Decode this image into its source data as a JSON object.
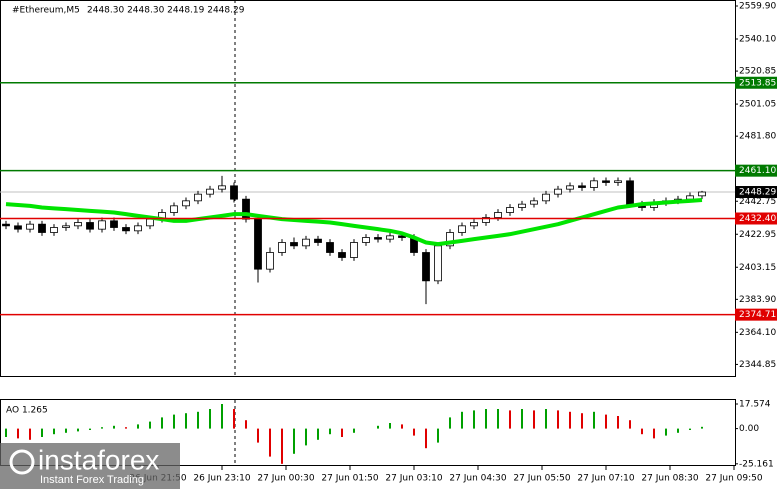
{
  "chart_data": {
    "type": "candlestick",
    "title": "#Ethereum,M5",
    "subtitle": "2448.30 2448.30 2448.19 2448.29",
    "up_color": "#ffffff",
    "down_color": "#000000",
    "outline_color": "#000000",
    "open": [
      2429,
      2428,
      2426,
      2429,
      2424,
      2427,
      2428,
      2430,
      2426,
      2431,
      2427,
      2425,
      2428,
      2432,
      2436,
      2440,
      2443,
      2447,
      2450,
      2452,
      2444,
      2432,
      2402,
      2412,
      2418,
      2416,
      2420,
      2418,
      2412,
      2409,
      2418,
      2421,
      2420,
      2422,
      2421,
      2412,
      2395,
      2416,
      2424,
      2428,
      2430,
      2433,
      2436,
      2439,
      2441,
      2443,
      2447,
      2450,
      2452,
      2451,
      2455,
      2454,
      2455,
      2441,
      2439,
      2442,
      2443,
      2444,
      2446
    ],
    "high": [
      2431,
      2430,
      2431,
      2431,
      2429,
      2430,
      2432,
      2432,
      2433,
      2433,
      2429,
      2430,
      2434,
      2438,
      2442,
      2445,
      2449,
      2452,
      2458,
      2454,
      2446,
      2434,
      2415,
      2420,
      2421,
      2422,
      2422,
      2420,
      2414,
      2420,
      2423,
      2423,
      2424,
      2424,
      2423,
      2414,
      2418,
      2426,
      2430,
      2432,
      2435,
      2438,
      2441,
      2443,
      2445,
      2449,
      2452,
      2454,
      2454,
      2457,
      2457,
      2457,
      2457,
      2443,
      2444,
      2445,
      2446,
      2448,
      2449
    ],
    "low": [
      2426,
      2424,
      2424,
      2422,
      2422,
      2425,
      2426,
      2424,
      2424,
      2425,
      2423,
      2423,
      2426,
      2430,
      2434,
      2438,
      2441,
      2445,
      2448,
      2442,
      2430,
      2394,
      2400,
      2410,
      2414,
      2414,
      2416,
      2410,
      2407,
      2407,
      2416,
      2418,
      2418,
      2419,
      2410,
      2381,
      2393,
      2414,
      2422,
      2426,
      2428,
      2431,
      2434,
      2437,
      2439,
      2441,
      2445,
      2448,
      2449,
      2449,
      2452,
      2452,
      2439,
      2437,
      2437,
      2440,
      2441,
      2442,
      2444
    ],
    "close": [
      2428,
      2426,
      2429,
      2424,
      2427,
      2428,
      2430,
      2426,
      2431,
      2427,
      2425,
      2428,
      2432,
      2436,
      2440,
      2443,
      2447,
      2450,
      2452,
      2444,
      2432,
      2402,
      2412,
      2418,
      2416,
      2420,
      2418,
      2412,
      2409,
      2418,
      2421,
      2420,
      2422,
      2421,
      2412,
      2395,
      2416,
      2424,
      2428,
      2430,
      2433,
      2436,
      2439,
      2441,
      2443,
      2447,
      2450,
      2452,
      2451,
      2455,
      2454,
      2455,
      2441,
      2439,
      2442,
      2443,
      2444,
      2446,
      2448.29
    ],
    "ma": {
      "color": "#00e400",
      "values": [
        2441,
        2440.5,
        2440,
        2439,
        2438.5,
        2438,
        2437.5,
        2437,
        2436.5,
        2436,
        2435,
        2434,
        2433,
        2432,
        2431,
        2431,
        2432,
        2433,
        2434,
        2435,
        2435,
        2434,
        2433,
        2432,
        2431.5,
        2431,
        2430.5,
        2430,
        2429,
        2428,
        2427,
        2426,
        2425,
        2423.5,
        2421,
        2418,
        2417,
        2418,
        2419,
        2420,
        2421,
        2422,
        2423,
        2424.5,
        2426,
        2427.5,
        2429,
        2431,
        2433,
        2435,
        2437,
        2439,
        2440,
        2441,
        2441.5,
        2442,
        2442.5,
        2443,
        2443.5
      ]
    },
    "ylim": [
      2339.7,
      2563.5
    ],
    "yticks": [
      {
        "value": 2559.9,
        "label": "2559.90"
      },
      {
        "value": 2540.1,
        "label": "2540.10"
      },
      2520.85,
      2501.05,
      {
        "value": 2481.8,
        "label": "2481.80"
      },
      2442.75,
      2422.95,
      2403.15,
      {
        "value": 2383.9,
        "label": "2383.90"
      },
      {
        "value": 2364.1,
        "label": "2364.10"
      },
      2344.85
    ],
    "levels": [
      {
        "value": 2513.85,
        "color": "#007a00"
      },
      {
        "value": {
          "value": 2461.1,
          "label": "2461.10"
        },
        "color": "#007a00"
      },
      {
        "value": {
          "value": 2432.4,
          "label": "2432.40"
        },
        "color": "#e00000"
      },
      {
        "value": 2374.71,
        "color": "#e00000"
      }
    ],
    "current": 2448.29,
    "x_labels": [
      "26 Jun 21:50",
      "26 Jun 23:10",
      "27 Jun 00:30",
      "27 Jun 01:50",
      "27 Jun 03:10",
      "27 Jun 04:30",
      "27 Jun 05:50",
      "27 Jun 07:10",
      "27 Jun 08:30",
      "27 Jun 09:50"
    ],
    "indicator": {
      "title": "AO 1.265",
      "up_color": "#00a000",
      "down_color": "#e00000",
      "values": [
        -6,
        -7,
        -8,
        -6,
        -4,
        -3,
        -2,
        -1,
        1,
        2,
        1,
        3,
        5,
        8,
        10,
        11,
        12,
        14,
        17.574,
        14,
        6,
        -10,
        -20,
        -25.161,
        -18,
        -12,
        -8,
        -4,
        -6,
        -3,
        0,
        2,
        4,
        3,
        -5,
        -14,
        -10,
        8,
        12,
        13,
        14,
        14,
        13,
        14,
        13,
        14,
        13,
        12,
        11,
        12,
        10,
        9,
        6,
        -4,
        -7,
        -5,
        -3,
        -1,
        1.265
      ],
      "ylim": [
        -26,
        19
      ],
      "yticks": [
        17.574,
        {
          "value": 0,
          "label": "0.00"
        },
        -25.161
      ]
    },
    "logo": {
      "name": "instaforex",
      "tagline": "Instant Forex Trading"
    }
  }
}
